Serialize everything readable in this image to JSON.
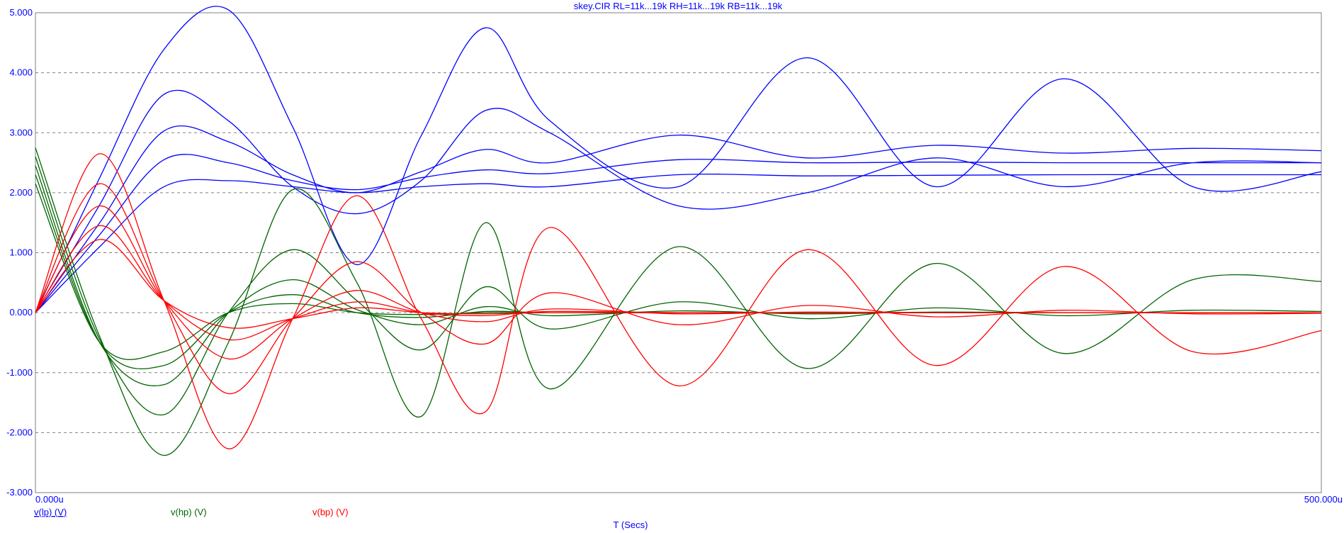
{
  "chart_data": {
    "type": "line",
    "title": "skey.CIR RL=11k...19k RH=11k...19k RB=11k...19k",
    "xlabel": "T (Secs)",
    "ylabel": "",
    "xlim": [
      0,
      500
    ],
    "ylim": [
      -3,
      5
    ],
    "grid": true,
    "x_tick_labels": {
      "start": "0.000u",
      "end": "500.000u"
    },
    "y_ticks": [
      5,
      4,
      3,
      2,
      1,
      0,
      -1,
      -2,
      -3
    ],
    "y_tick_labels": [
      "5.000",
      "4.000",
      "3.000",
      "2.000",
      "1.000",
      "0.000",
      "-1.000",
      "-2.000",
      "-3.000"
    ],
    "legend": [
      {
        "name": "v(lp) (V)",
        "color": "#0000ff"
      },
      {
        "name": "v(hp) (V)",
        "color": "#006400"
      },
      {
        "name": "v(bp) (V)",
        "color": "#ff0000"
      }
    ],
    "series": [
      {
        "group": "lp",
        "color": "#0000ff",
        "curve": 1,
        "x": [
          0,
          25,
          50,
          75,
          100,
          125,
          150,
          175,
          200,
          250,
          300,
          350,
          400,
          450,
          500
        ],
        "values": [
          0,
          2.25,
          4.39,
          5.05,
          3.1,
          0.8,
          2.95,
          4.75,
          3.2,
          2.1,
          4.25,
          2.1,
          3.9,
          2.1,
          2.35
        ]
      },
      {
        "group": "lp",
        "color": "#0000ff",
        "curve": 2,
        "x": [
          0,
          25,
          50,
          75,
          100,
          125,
          150,
          175,
          200,
          250,
          300,
          350,
          400,
          450,
          500
        ],
        "values": [
          0,
          1.8,
          3.64,
          3.2,
          2.1,
          1.65,
          2.2,
          3.37,
          3.0,
          1.78,
          2.0,
          2.58,
          2.1,
          2.5,
          2.5
        ]
      },
      {
        "group": "lp",
        "color": "#0000ff",
        "curve": 3,
        "x": [
          0,
          25,
          50,
          75,
          100,
          125,
          150,
          175,
          200,
          250,
          300,
          350,
          400,
          450,
          500
        ],
        "values": [
          0,
          1.5,
          3.03,
          2.85,
          2.3,
          2.0,
          2.35,
          2.72,
          2.5,
          2.96,
          2.58,
          2.79,
          2.66,
          2.74,
          2.7
        ]
      },
      {
        "group": "lp",
        "color": "#0000ff",
        "curve": 4,
        "x": [
          0,
          25,
          50,
          75,
          100,
          125,
          150,
          175,
          200,
          250,
          300,
          350,
          400,
          450,
          500
        ],
        "values": [
          0,
          1.3,
          2.55,
          2.5,
          2.2,
          2.05,
          2.25,
          2.38,
          2.32,
          2.55,
          2.5,
          2.51,
          2.5,
          2.5,
          2.5
        ]
      },
      {
        "group": "lp",
        "color": "#0000ff",
        "curve": 5,
        "x": [
          0,
          25,
          50,
          75,
          100,
          125,
          150,
          175,
          200,
          250,
          300,
          350,
          400,
          450,
          500
        ],
        "values": [
          0,
          1.1,
          2.1,
          2.2,
          2.1,
          2.0,
          2.1,
          2.15,
          2.1,
          2.3,
          2.28,
          2.29,
          2.3,
          2.3,
          2.3
        ]
      },
      {
        "group": "hp",
        "color": "#006400",
        "curve": 1,
        "x": [
          0,
          25,
          50,
          75,
          100,
          125,
          150,
          175,
          200,
          250,
          300,
          350,
          400,
          450,
          500
        ],
        "values": [
          2.75,
          -0.4,
          -2.38,
          -0.5,
          2.05,
          0.5,
          -1.73,
          1.5,
          -1.27,
          1.1,
          -0.93,
          0.82,
          -0.68,
          0.55,
          0.52
        ]
      },
      {
        "group": "hp",
        "color": "#006400",
        "curve": 2,
        "x": [
          0,
          25,
          50,
          75,
          100,
          125,
          150,
          175,
          200,
          250,
          300,
          350,
          400,
          450,
          500
        ],
        "values": [
          2.6,
          -0.45,
          -1.7,
          0.0,
          1.05,
          0.2,
          -0.62,
          0.43,
          -0.27,
          0.18,
          -0.1,
          0.08,
          -0.05,
          0.04,
          0.02
        ]
      },
      {
        "group": "hp",
        "color": "#006400",
        "curve": 3,
        "x": [
          0,
          25,
          50,
          75,
          100,
          125,
          150,
          175,
          200,
          250,
          300,
          350,
          400,
          450,
          500
        ],
        "values": [
          2.45,
          -0.5,
          -1.2,
          0.0,
          0.55,
          0.05,
          -0.2,
          0.1,
          -0.05,
          0.03,
          -0.02,
          0.01,
          0.0,
          0.0,
          0.0
        ]
      },
      {
        "group": "hp",
        "color": "#006400",
        "curve": 4,
        "x": [
          0,
          25,
          50,
          75,
          100,
          125,
          150,
          175,
          200,
          250,
          300,
          350,
          400,
          450,
          500
        ],
        "values": [
          2.3,
          -0.5,
          -0.88,
          0.0,
          0.3,
          0.0,
          -0.08,
          0.02,
          0.0,
          0.0,
          0.0,
          0.0,
          0.0,
          0.0,
          0.0
        ]
      },
      {
        "group": "hp",
        "color": "#006400",
        "curve": 5,
        "x": [
          0,
          25,
          50,
          75,
          100,
          125,
          150,
          175,
          200,
          250,
          300,
          350,
          400,
          450,
          500
        ],
        "values": [
          2.15,
          -0.5,
          -0.65,
          0.0,
          0.15,
          0.0,
          -0.03,
          0.0,
          0.0,
          0.0,
          0.0,
          0.0,
          0.0,
          0.0,
          0.0
        ]
      },
      {
        "group": "bp",
        "color": "#ff0000",
        "curve": 1,
        "x": [
          0,
          25,
          50,
          75,
          100,
          125,
          150,
          175,
          200,
          250,
          300,
          350,
          400,
          450,
          500
        ],
        "values": [
          0,
          2.65,
          0.2,
          -2.27,
          -0.1,
          1.95,
          -0.1,
          -1.65,
          1.42,
          -1.22,
          1.05,
          -0.88,
          0.77,
          -0.65,
          -0.3
        ]
      },
      {
        "group": "bp",
        "color": "#ff0000",
        "curve": 2,
        "x": [
          0,
          25,
          50,
          75,
          100,
          125,
          150,
          175,
          200,
          250,
          300,
          350,
          400,
          450,
          500
        ],
        "values": [
          0,
          2.15,
          0.2,
          -1.35,
          -0.1,
          0.85,
          0.0,
          -0.52,
          0.33,
          -0.2,
          0.12,
          -0.07,
          0.04,
          -0.02,
          -0.01
        ]
      },
      {
        "group": "bp",
        "color": "#ff0000",
        "curve": 3,
        "x": [
          0,
          25,
          50,
          75,
          100,
          125,
          150,
          175,
          200,
          250,
          300,
          350,
          400,
          450,
          500
        ],
        "values": [
          0,
          1.78,
          0.2,
          -0.77,
          -0.1,
          0.37,
          0.0,
          -0.15,
          0.06,
          -0.02,
          0.01,
          0.0,
          0.0,
          0.0,
          0.0
        ]
      },
      {
        "group": "bp",
        "color": "#ff0000",
        "curve": 4,
        "x": [
          0,
          25,
          50,
          75,
          100,
          125,
          150,
          175,
          200,
          250,
          300,
          350,
          400,
          450,
          500
        ],
        "values": [
          0,
          1.45,
          0.2,
          -0.45,
          -0.1,
          0.18,
          0.0,
          -0.05,
          0.02,
          0.0,
          0.0,
          0.0,
          0.0,
          0.0,
          0.0
        ]
      },
      {
        "group": "bp",
        "color": "#ff0000",
        "curve": 5,
        "x": [
          0,
          25,
          50,
          75,
          100,
          125,
          150,
          175,
          200,
          250,
          300,
          350,
          400,
          450,
          500
        ],
        "values": [
          0,
          1.22,
          0.2,
          -0.25,
          -0.1,
          0.08,
          0.0,
          -0.02,
          0.0,
          0.0,
          0.0,
          0.0,
          0.0,
          0.0,
          0.0
        ]
      }
    ]
  }
}
